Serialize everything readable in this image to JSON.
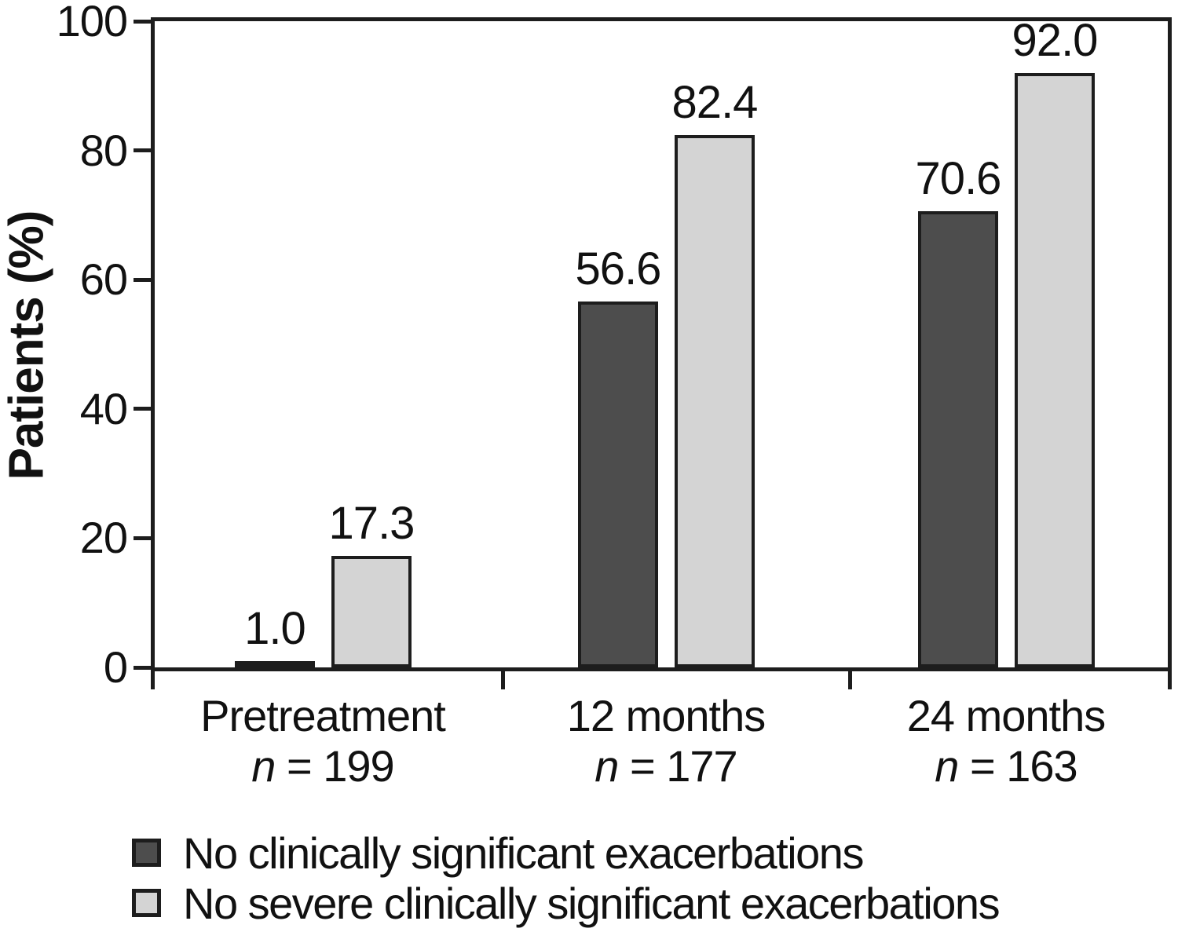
{
  "chart_data": {
    "type": "bar",
    "title": "",
    "ylabel": "Patients (%)",
    "xlabel": "",
    "ylim": [
      0,
      100
    ],
    "yticks": [
      0,
      20,
      40,
      60,
      80,
      100
    ],
    "grid": false,
    "legend_position": "bottom-left",
    "axis_color": "#1d1d1d",
    "text_color": "#111111",
    "categories": [
      {
        "label": "Pretreatment",
        "n": "n = 199"
      },
      {
        "label": "12 months",
        "n": "n = 177"
      },
      {
        "label": "24 months",
        "n": "n = 163"
      }
    ],
    "series": [
      {
        "name": "No clinically significant exacerbations",
        "color": "#4d4d4d",
        "values": [
          1.0,
          56.6,
          70.6
        ]
      },
      {
        "name": "No severe clinically significant exacerbations",
        "color": "#d4d4d4",
        "values": [
          17.3,
          82.4,
          92.0
        ]
      }
    ]
  }
}
